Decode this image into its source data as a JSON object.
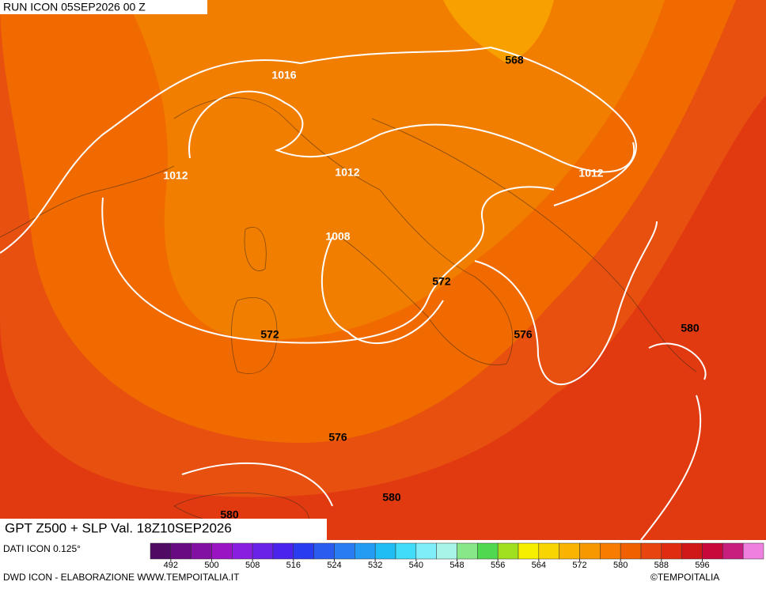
{
  "header": {
    "run": "RUN ICON 05SEP2026 00 Z"
  },
  "map": {
    "title": "GPT Z500 + SLP Val. 18Z10SEP2026",
    "slp_labels": [
      "1016",
      "1012",
      "1012",
      "1012",
      "1008"
    ],
    "z500_labels": [
      "568",
      "572",
      "572",
      "576",
      "576",
      "580",
      "580",
      "580"
    ]
  },
  "legend": {
    "source": "DATI ICON 0.125°",
    "range": [
      488,
      608
    ],
    "ticks": [
      492,
      500,
      508,
      516,
      524,
      532,
      540,
      548,
      556,
      564,
      572,
      580,
      588,
      596
    ],
    "colors": [
      "#500a64",
      "#6a0a82",
      "#8210a2",
      "#9a14c4",
      "#8a1ee0",
      "#6a22e8",
      "#4a24ec",
      "#2a3cf0",
      "#2a5cf0",
      "#2a7cf2",
      "#249cf4",
      "#20bcf4",
      "#40dcf8",
      "#80eef8",
      "#a8f4e8",
      "#88e888",
      "#50d850",
      "#a0e020",
      "#f4f000",
      "#f8d400",
      "#f8b400",
      "#f89800",
      "#f87c00",
      "#f06000",
      "#e84410",
      "#e02c10",
      "#d01818",
      "#c8083a",
      "#c81e7e",
      "#f080e0"
    ]
  },
  "footer": {
    "credit": "DWD ICON - ELABORAZIONE WWW.TEMPOITALIA.IT",
    "copyright": "©TEMPOITALIA"
  }
}
